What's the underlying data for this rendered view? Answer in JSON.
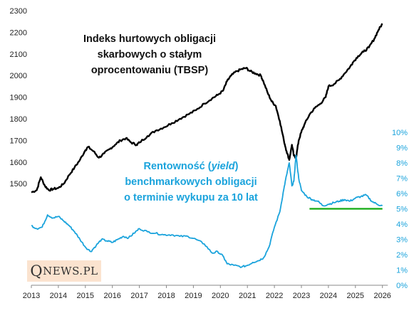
{
  "logo": {
    "initial": "Q",
    "rest": "NEWS.PL"
  },
  "chart_data": {
    "type": "line",
    "x_ticks": [
      "2013",
      "2014",
      "2015",
      "2016",
      "2017",
      "2018",
      "2019",
      "2020",
      "2021",
      "2022",
      "2023",
      "2024",
      "2025",
      "2026"
    ],
    "y_left_ticks": [
      "1500",
      "1600",
      "1700",
      "1800",
      "1900",
      "2000",
      "2100",
      "2200",
      "2300"
    ],
    "y_right_ticks": [
      "0%",
      "1%",
      "2%",
      "3%",
      "4%",
      "5%",
      "6%",
      "7%",
      "8%",
      "9%",
      "10%"
    ],
    "grid": false,
    "series": [
      {
        "axis": "left",
        "color": "#000000",
        "annotation_lines": [
          "Indeks hurtowych obligacji",
          "skarbowych o stałym",
          "oprocentowaniu (TBSP)"
        ],
        "points": [
          [
            2013.0,
            1460
          ],
          [
            2013.2,
            1470
          ],
          [
            2013.35,
            1530
          ],
          [
            2013.5,
            1490
          ],
          [
            2013.65,
            1470
          ],
          [
            2013.8,
            1475
          ],
          [
            2014.0,
            1480
          ],
          [
            2014.2,
            1500
          ],
          [
            2014.4,
            1540
          ],
          [
            2014.6,
            1575
          ],
          [
            2014.8,
            1610
          ],
          [
            2015.0,
            1655
          ],
          [
            2015.1,
            1670
          ],
          [
            2015.3,
            1650
          ],
          [
            2015.5,
            1620
          ],
          [
            2015.7,
            1640
          ],
          [
            2015.9,
            1660
          ],
          [
            2016.1,
            1680
          ],
          [
            2016.3,
            1700
          ],
          [
            2016.5,
            1710
          ],
          [
            2016.7,
            1690
          ],
          [
            2016.9,
            1680
          ],
          [
            2017.0,
            1690
          ],
          [
            2017.3,
            1720
          ],
          [
            2017.6,
            1745
          ],
          [
            2017.9,
            1760
          ],
          [
            2018.2,
            1780
          ],
          [
            2018.5,
            1800
          ],
          [
            2018.8,
            1820
          ],
          [
            2019.1,
            1840
          ],
          [
            2019.4,
            1870
          ],
          [
            2019.7,
            1895
          ],
          [
            2019.9,
            1910
          ],
          [
            2020.1,
            1930
          ],
          [
            2020.25,
            1975
          ],
          [
            2020.4,
            2000
          ],
          [
            2020.6,
            2020
          ],
          [
            2020.8,
            2030
          ],
          [
            2020.95,
            2035
          ],
          [
            2021.1,
            2020
          ],
          [
            2021.3,
            2010
          ],
          [
            2021.5,
            2000
          ],
          [
            2021.6,
            1970
          ],
          [
            2021.75,
            1920
          ],
          [
            2021.9,
            1880
          ],
          [
            2022.05,
            1860
          ],
          [
            2022.2,
            1790
          ],
          [
            2022.35,
            1700
          ],
          [
            2022.45,
            1650
          ],
          [
            2022.55,
            1610
          ],
          [
            2022.65,
            1680
          ],
          [
            2022.72,
            1630
          ],
          [
            2022.8,
            1620
          ],
          [
            2022.9,
            1700
          ],
          [
            2023.0,
            1740
          ],
          [
            2023.1,
            1770
          ],
          [
            2023.3,
            1820
          ],
          [
            2023.5,
            1850
          ],
          [
            2023.7,
            1870
          ],
          [
            2023.9,
            1900
          ],
          [
            2024.0,
            1950
          ],
          [
            2024.2,
            1960
          ],
          [
            2024.4,
            1980
          ],
          [
            2024.6,
            2010
          ],
          [
            2024.8,
            2040
          ],
          [
            2024.9,
            2060
          ],
          [
            2025.1,
            2090
          ],
          [
            2025.3,
            2110
          ],
          [
            2025.5,
            2130
          ],
          [
            2025.7,
            2170
          ],
          [
            2025.85,
            2210
          ],
          [
            2026.0,
            2240
          ]
        ]
      },
      {
        "axis": "right",
        "color": "#1aa3dc",
        "annotation_lines": [
          "Rentowność (yield)",
          "benchmarkowych obligacji",
          "o terminie wykupu za 10 lat"
        ],
        "points": [
          [
            2013.0,
            3.9
          ],
          [
            2013.2,
            3.7
          ],
          [
            2013.4,
            3.8
          ],
          [
            2013.6,
            4.6
          ],
          [
            2013.8,
            4.4
          ],
          [
            2014.0,
            4.5
          ],
          [
            2014.2,
            4.2
          ],
          [
            2014.4,
            3.9
          ],
          [
            2014.6,
            3.5
          ],
          [
            2014.8,
            3.0
          ],
          [
            2015.0,
            2.5
          ],
          [
            2015.2,
            2.2
          ],
          [
            2015.4,
            2.6
          ],
          [
            2015.6,
            3.0
          ],
          [
            2015.8,
            2.9
          ],
          [
            2016.0,
            2.8
          ],
          [
            2016.2,
            3.0
          ],
          [
            2016.4,
            3.2
          ],
          [
            2016.6,
            3.1
          ],
          [
            2016.8,
            3.4
          ],
          [
            2017.0,
            3.7
          ],
          [
            2017.3,
            3.5
          ],
          [
            2017.6,
            3.4
          ],
          [
            2017.9,
            3.3
          ],
          [
            2018.2,
            3.3
          ],
          [
            2018.5,
            3.2
          ],
          [
            2018.8,
            3.2
          ],
          [
            2019.1,
            3.0
          ],
          [
            2019.4,
            2.7
          ],
          [
            2019.7,
            2.1
          ],
          [
            2019.9,
            2.2
          ],
          [
            2020.1,
            1.9
          ],
          [
            2020.25,
            1.4
          ],
          [
            2020.5,
            1.3
          ],
          [
            2020.8,
            1.2
          ],
          [
            2021.0,
            1.3
          ],
          [
            2021.2,
            1.5
          ],
          [
            2021.4,
            1.6
          ],
          [
            2021.6,
            1.8
          ],
          [
            2021.8,
            2.5
          ],
          [
            2022.0,
            3.8
          ],
          [
            2022.2,
            4.8
          ],
          [
            2022.35,
            6.3
          ],
          [
            2022.45,
            7.2
          ],
          [
            2022.55,
            8.0
          ],
          [
            2022.65,
            6.5
          ],
          [
            2022.72,
            6.8
          ],
          [
            2022.8,
            8.5
          ],
          [
            2022.9,
            7.0
          ],
          [
            2023.0,
            6.2
          ],
          [
            2023.2,
            5.8
          ],
          [
            2023.4,
            5.6
          ],
          [
            2023.6,
            5.5
          ],
          [
            2023.8,
            5.2
          ],
          [
            2024.0,
            5.3
          ],
          [
            2024.2,
            5.4
          ],
          [
            2024.4,
            5.5
          ],
          [
            2024.6,
            5.6
          ],
          [
            2024.8,
            5.5
          ],
          [
            2025.0,
            5.7
          ],
          [
            2025.2,
            5.8
          ],
          [
            2025.4,
            5.9
          ],
          [
            2025.6,
            5.5
          ],
          [
            2025.8,
            5.3
          ],
          [
            2026.0,
            5.2
          ]
        ]
      }
    ],
    "hline": {
      "axis": "right",
      "value": 5.0,
      "x_from": 2023.3,
      "x_to": 2026.0,
      "color": "#11aa11"
    }
  }
}
